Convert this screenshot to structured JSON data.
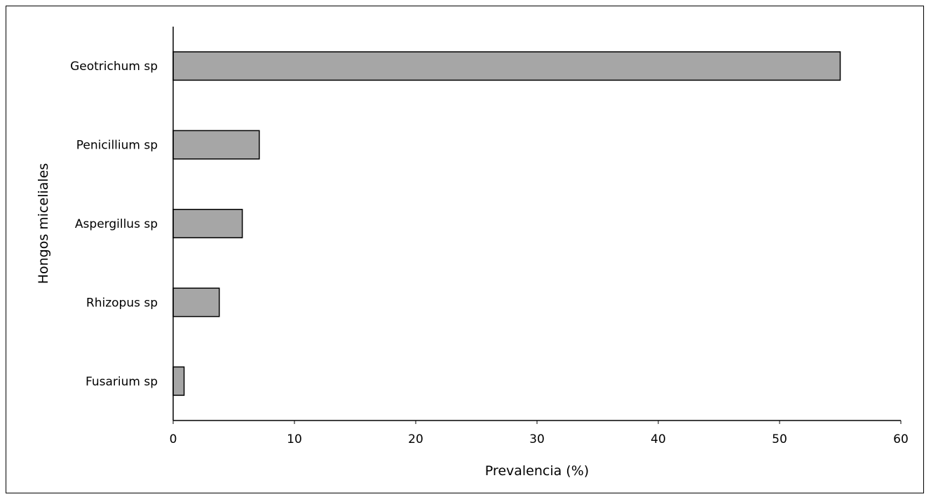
{
  "chart_data": {
    "type": "bar",
    "orientation": "horizontal",
    "categories": [
      "Geotrichum sp",
      "Penicillium sp",
      "Aspergillus sp",
      "Rhizopus sp",
      "Fusarium sp"
    ],
    "values": [
      55.0,
      7.1,
      5.7,
      3.8,
      0.9
    ],
    "xlabel": "Prevalencia (%)",
    "ylabel": "Hongos miceliales",
    "xlim": [
      0,
      60
    ],
    "xticks": [
      "0",
      "10",
      "20",
      "30",
      "40",
      "50",
      "60"
    ],
    "grid": false,
    "legend": "none",
    "bar_color": "#a6a6a6",
    "bar_edge_color": "#000000"
  }
}
